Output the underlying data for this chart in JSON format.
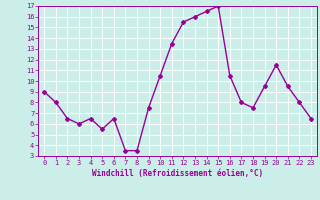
{
  "x": [
    0,
    1,
    2,
    3,
    4,
    5,
    6,
    7,
    8,
    9,
    10,
    11,
    12,
    13,
    14,
    15,
    16,
    17,
    18,
    19,
    20,
    21,
    22,
    23
  ],
  "y": [
    9,
    8,
    6.5,
    6,
    6.5,
    5.5,
    6.5,
    3.5,
    3.5,
    7.5,
    10.5,
    13.5,
    15.5,
    16,
    16.5,
    17,
    10.5,
    8,
    7.5,
    9.5,
    11.5,
    9.5,
    8,
    6.5
  ],
  "line_color": "#990099",
  "marker": "D",
  "marker_size": 2,
  "bg_color": "#cceee8",
  "grid_color": "#ffffff",
  "xlabel": "Windchill (Refroidissement éolien,°C)",
  "xlabel_color": "#990099",
  "tick_color": "#990099",
  "xlim": [
    -0.5,
    23.5
  ],
  "ylim": [
    3,
    17
  ],
  "yticks": [
    3,
    4,
    5,
    6,
    7,
    8,
    9,
    10,
    11,
    12,
    13,
    14,
    15,
    16,
    17
  ],
  "xticks": [
    0,
    1,
    2,
    3,
    4,
    5,
    6,
    7,
    8,
    9,
    10,
    11,
    12,
    13,
    14,
    15,
    16,
    17,
    18,
    19,
    20,
    21,
    22,
    23
  ],
  "line_width": 1.0
}
